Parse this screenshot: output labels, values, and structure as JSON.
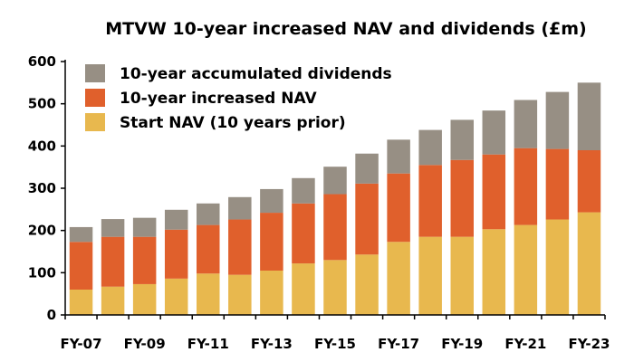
{
  "chart_data": {
    "type": "bar",
    "stacked": true,
    "title": "MTVW 10-year increased NAV and dividends (£m)",
    "xlabel": "",
    "ylabel": "",
    "ylim": [
      0,
      600
    ],
    "yticks": [
      0,
      100,
      200,
      300,
      400,
      500,
      600
    ],
    "grid": false,
    "legend_position": "top-left",
    "categories": [
      "FY-07",
      "FY-08",
      "FY-09",
      "FY-10",
      "FY-11",
      "FY-12",
      "FY-13",
      "FY-14",
      "FY-15",
      "FY-16",
      "FY-17",
      "FY-18",
      "FY-19",
      "FY-20",
      "FY-21",
      "FY-22",
      "FY-23"
    ],
    "x_tick_labels_shown": [
      "FY-07",
      "FY-09",
      "FY-11",
      "FY-13",
      "FY-15",
      "FY-17",
      "FY-19",
      "FY-21",
      "FY-23"
    ],
    "series": [
      {
        "name": "Start NAV (10 years prior)",
        "color": "#E8B84E",
        "values": [
          60,
          67,
          73,
          86,
          98,
          95,
          105,
          122,
          130,
          143,
          173,
          185,
          185,
          203,
          213,
          226,
          243
        ]
      },
      {
        "name": "10-year increased NAV",
        "color": "#E0602C",
        "values": [
          113,
          118,
          112,
          116,
          115,
          131,
          137,
          142,
          156,
          168,
          162,
          170,
          182,
          177,
          182,
          167,
          147
        ]
      },
      {
        "name": "10-year accumulated dividends",
        "color": "#978F84",
        "values": [
          35,
          42,
          45,
          47,
          51,
          53,
          56,
          60,
          65,
          71,
          80,
          83,
          95,
          104,
          114,
          135,
          160
        ]
      }
    ],
    "legend_order": [
      "10-year accumulated dividends",
      "10-year increased NAV",
      "Start NAV (10 years prior)"
    ]
  }
}
